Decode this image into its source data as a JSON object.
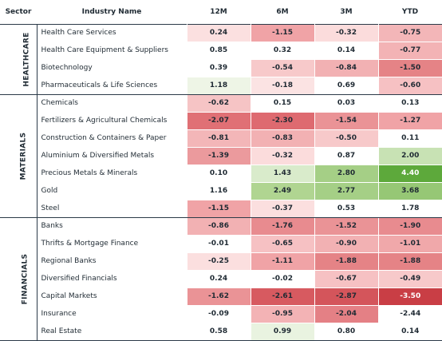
{
  "header": {
    "sector": "Sector",
    "industry": "Industry Name",
    "periods": [
      "12M",
      "6M",
      "3M",
      "YTD"
    ]
  },
  "groups": [
    {
      "sector": "HEALTHCARE",
      "rows": [
        {
          "name": "Health Care Services",
          "values": [
            "0.24",
            "-1.15",
            "-0.32",
            "-0.75"
          ]
        },
        {
          "name": "Health Care Equipment & Suppliers",
          "values": [
            "0.85",
            "0.32",
            "0.14",
            "-0.77"
          ]
        },
        {
          "name": "Biotechnology",
          "values": [
            "0.39",
            "-0.54",
            "-0.84",
            "-1.50"
          ]
        },
        {
          "name": "Pharmaceuticals & Life Sciences",
          "values": [
            "1.18",
            "-0.18",
            "0.69",
            "-0.60"
          ]
        }
      ]
    },
    {
      "sector": "MATERIALS",
      "rows": [
        {
          "name": "Chemicals",
          "values": [
            "-0.62",
            "0.15",
            "0.03",
            "0.13"
          ]
        },
        {
          "name": "Fertilizers & Agricultural Chemicals",
          "values": [
            "-2.07",
            "-2.30",
            "-1.54",
            "-1.27"
          ]
        },
        {
          "name": "Construction & Containers & Paper",
          "values": [
            "-0.81",
            "-0.83",
            "-0.50",
            "0.11"
          ]
        },
        {
          "name": "Aluminium & Diversified Metals",
          "values": [
            "-1.39",
            "-0.32",
            "0.87",
            "2.00"
          ]
        },
        {
          "name": "Precious Metals & Minerals",
          "values": [
            "0.10",
            "1.43",
            "2.80",
            "4.40"
          ]
        },
        {
          "name": "Gold",
          "values": [
            "1.16",
            "2.49",
            "2.77",
            "3.68"
          ]
        },
        {
          "name": "Steel",
          "values": [
            "-1.15",
            "-0.37",
            "0.53",
            "1.78"
          ]
        }
      ]
    },
    {
      "sector": "FINANCIALS",
      "rows": [
        {
          "name": "Banks",
          "values": [
            "-0.86",
            "-1.76",
            "-1.52",
            "-1.90"
          ]
        },
        {
          "name": "Thrifts & Mortgage Finance",
          "values": [
            "-0.01",
            "-0.65",
            "-0.90",
            "-1.01"
          ]
        },
        {
          "name": "Regional Banks",
          "values": [
            "-0.25",
            "-1.11",
            "-1.88",
            "-1.88"
          ]
        },
        {
          "name": "Diversified Financials",
          "values": [
            "0.24",
            "-0.02",
            "-0.67",
            "-0.49"
          ]
        },
        {
          "name": "Capital Markets",
          "values": [
            "-1.62",
            "-2.61",
            "-2.87",
            "-3.50"
          ]
        },
        {
          "name": "Insurance",
          "values": [
            "-0.09",
            "-0.95",
            "-2.04",
            "-2.44"
          ]
        },
        {
          "name": "Real Estate",
          "values": [
            "0.58",
            "0.99",
            "0.80",
            "0.14"
          ]
        }
      ]
    }
  ],
  "cell_colors": [
    [
      "#fbe0e0",
      "#f0a3a6",
      "#fbdcdc",
      "#f3b6b8"
    ],
    [
      "#ffffff",
      "#ffffff",
      "#ffffff",
      "#f3b3b5"
    ],
    [
      "#ffffff",
      "#f7c9ca",
      "#f2b1b3",
      "#e58386"
    ],
    [
      "#eef5e6",
      "#fbe3e3",
      "#ffffff",
      "#f6c1c3"
    ],
    [
      "#f6c4c5",
      "#ffffff",
      "#ffffff",
      "#ffffff"
    ],
    [
      "#e07075",
      "#de6a70",
      "#ea9396",
      "#f0a3a6"
    ],
    [
      "#f3b6b8",
      "#f2b1b3",
      "#f7c9ca",
      "#ffffff"
    ],
    [
      "#eb9a9d",
      "#fbdcdc",
      "#ffffff",
      "#c8e2b4"
    ],
    [
      "#ffffff",
      "#d9ebcb",
      "#a5cf86",
      "#5da93b"
    ],
    [
      "#ffffff",
      "#b0d591",
      "#a5cf86",
      "#96c775"
    ],
    [
      "#f0a3a6",
      "#fbdfdf",
      "#ffffff",
      "#ffffff"
    ],
    [
      "#f2b1b3",
      "#e88b8f",
      "#ea9396",
      "#e88b8f"
    ],
    [
      "#ffffff",
      "#f6c1c3",
      "#f2b1b3",
      "#f0a8aa"
    ],
    [
      "#fbdfdf",
      "#f0a3a6",
      "#e58386",
      "#e58386"
    ],
    [
      "#ffffff",
      "#ffffff",
      "#f6c1c3",
      "#f7c9ca"
    ],
    [
      "#ea9396",
      "#d75a60",
      "#d4555b",
      "#c93e45"
    ],
    [
      "#ffffff",
      "#f3b3b5",
      "#e48085",
      "#ffffff"
    ],
    [
      "#ffffff",
      "#e9f3e0",
      "#ffffff",
      "#ffffff"
    ]
  ],
  "text_colors": {
    "default": "#1f2a33",
    "on_dark": "#ffffff"
  },
  "dark_cells": [
    [
      15,
      3
    ],
    [
      8,
      3
    ]
  ]
}
